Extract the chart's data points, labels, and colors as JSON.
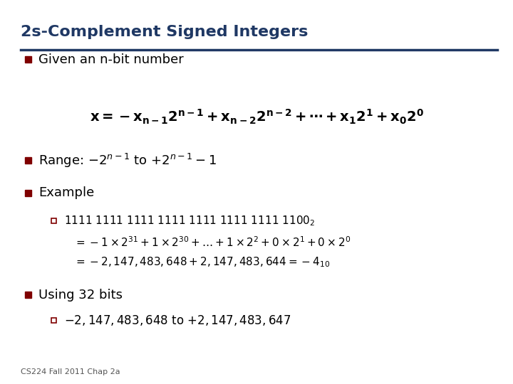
{
  "title": "2s-Complement Signed Integers",
  "title_color": "#1F3864",
  "title_underline_color": "#1F3864",
  "background_color": "#FFFFFF",
  "bullet_color": "#7F0000",
  "text_color": "#000000",
  "footer": "CS224 Fall 2011 Chap 2a",
  "bullet1": "Given an n-bit number",
  "bullet2_main": "Range: ",
  "bullet3": "Example",
  "bullet4": "Using 32 bits",
  "sub_bullet1_line1": "1111 1111 1111 1111 1111 1111 1111 1100",
  "sub_bullet1_line2": "= –1×2³¹ + 1×2³⁰ + … + 1×2² +0×2¹ +0×2⁰",
  "sub_bullet1_line3": "= –2,147,483,648 + 2,147,483,644 = –4",
  "sub_bullet2": "–2,147,483,648 to +2,147,483,647"
}
